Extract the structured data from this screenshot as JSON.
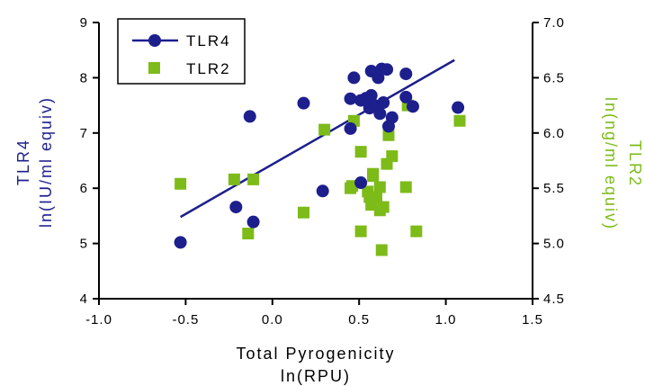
{
  "chart_data": {
    "type": "scatter",
    "xlabel": [
      "Total Pyrogenicity",
      "ln(RPU)"
    ],
    "y_left_label": [
      "TLR4",
      "ln(IU/ml equiv)"
    ],
    "y_right_label": [
      "TLR2",
      "ln(ng/ml equiv)"
    ],
    "xlim": [
      -1.0,
      1.5
    ],
    "ylim_left": [
      4,
      9
    ],
    "ylim_right": [
      4.5,
      7.0
    ],
    "x_ticks": [
      "-1.0",
      "-0.5",
      "0.0",
      "0.5",
      "1.0",
      "1.5"
    ],
    "y_left_ticks": [
      "4",
      "5",
      "6",
      "7",
      "8",
      "9"
    ],
    "y_right_ticks": [
      "4.5",
      "5.0",
      "5.5",
      "6.0",
      "6.5",
      "7.0"
    ],
    "grid": false,
    "legend_position": "top-left",
    "colors": {
      "TLR4": "#1c1f8c",
      "TLR2": "#7dbb19"
    },
    "series": [
      {
        "name": "TLR4",
        "axis": "left",
        "marker": "circle",
        "points": [
          [
            -0.53,
            5.02
          ],
          [
            -0.21,
            5.66
          ],
          [
            -0.13,
            7.3
          ],
          [
            -0.11,
            5.39
          ],
          [
            0.18,
            7.54
          ],
          [
            0.29,
            5.95
          ],
          [
            0.45,
            7.08
          ],
          [
            0.45,
            7.62
          ],
          [
            0.47,
            8.0
          ],
          [
            0.51,
            6.1
          ],
          [
            0.51,
            7.59
          ],
          [
            0.54,
            7.63
          ],
          [
            0.56,
            7.45
          ],
          [
            0.57,
            7.68
          ],
          [
            0.57,
            8.12
          ],
          [
            0.59,
            7.5
          ],
          [
            0.61,
            8.0
          ],
          [
            0.62,
            7.35
          ],
          [
            0.63,
            8.16
          ],
          [
            0.64,
            7.55
          ],
          [
            0.66,
            8.15
          ],
          [
            0.67,
            7.12
          ],
          [
            0.69,
            7.28
          ],
          [
            0.77,
            7.65
          ],
          [
            0.77,
            8.07
          ],
          [
            0.81,
            7.48
          ],
          [
            1.07,
            7.46
          ]
        ],
        "fit_line": [
          [
            -0.53,
            5.48
          ],
          [
            1.05,
            8.32
          ]
        ]
      },
      {
        "name": "TLR2",
        "axis": "right",
        "marker": "square",
        "points": [
          [
            -0.53,
            5.54
          ],
          [
            -0.22,
            5.58
          ],
          [
            -0.14,
            5.09
          ],
          [
            -0.11,
            5.58
          ],
          [
            0.18,
            5.28
          ],
          [
            0.3,
            6.03
          ],
          [
            0.45,
            5.5
          ],
          [
            0.46,
            5.52
          ],
          [
            0.47,
            6.11
          ],
          [
            0.51,
            5.83
          ],
          [
            0.51,
            5.11
          ],
          [
            0.55,
            5.47
          ],
          [
            0.56,
            5.42
          ],
          [
            0.57,
            5.35
          ],
          [
            0.58,
            5.63
          ],
          [
            0.58,
            5.61
          ],
          [
            0.6,
            5.41
          ],
          [
            0.62,
            5.51
          ],
          [
            0.62,
            5.3
          ],
          [
            0.63,
            4.94
          ],
          [
            0.64,
            5.33
          ],
          [
            0.66,
            5.72
          ],
          [
            0.67,
            5.98
          ],
          [
            0.69,
            5.79
          ],
          [
            0.77,
            5.51
          ],
          [
            0.78,
            6.25
          ],
          [
            0.83,
            5.11
          ],
          [
            1.08,
            6.11
          ]
        ]
      }
    ]
  }
}
